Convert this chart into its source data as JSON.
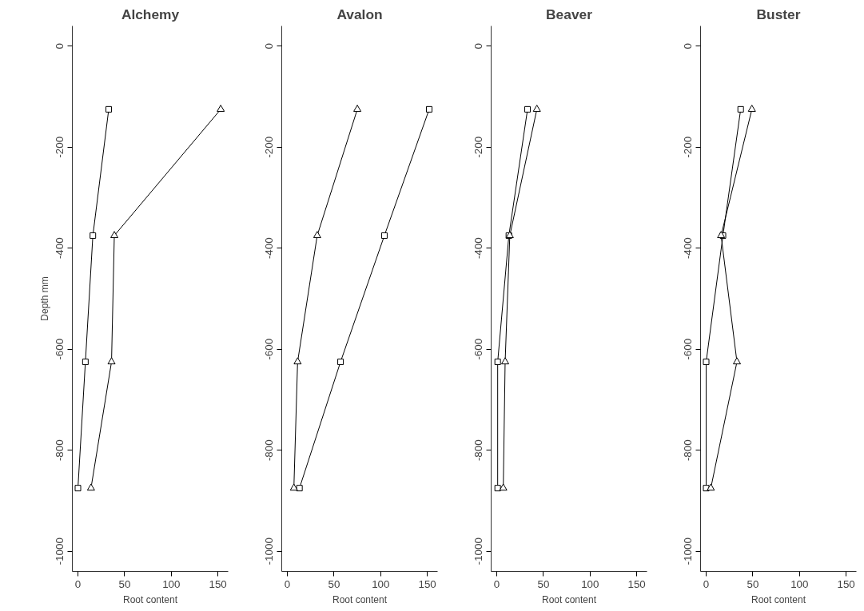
{
  "chart_data": [
    {
      "type": "line",
      "title": "Alchemy",
      "xlabel": "Root content",
      "ylabel": "Depth mm",
      "xlim": [
        -6,
        161
      ],
      "ylim": [
        -1040,
        40
      ],
      "xticks": [
        0,
        50,
        100,
        150
      ],
      "yticks": [
        0,
        -200,
        -400,
        -600,
        -800,
        -1000
      ],
      "series": [
        {
          "color": "#000000",
          "marker": "square",
          "x": [
            33,
            16,
            8,
            0
          ],
          "values": [
            -125,
            -375,
            -625,
            -875
          ]
        },
        {
          "color": "#000000",
          "marker": "triangle",
          "x": [
            153,
            39,
            36,
            14
          ],
          "values": [
            -125,
            -375,
            -625,
            -875
          ]
        }
      ]
    },
    {
      "type": "line",
      "title": "Avalon",
      "xlabel": "Root content",
      "xlim": [
        -6,
        161
      ],
      "ylim": [
        -1040,
        40
      ],
      "xticks": [
        0,
        50,
        100,
        150
      ],
      "yticks": [
        0,
        -200,
        -400,
        -600,
        -800,
        -1000
      ],
      "series": [
        {
          "color": "#000000",
          "marker": "square",
          "x": [
            152,
            104,
            57,
            13
          ],
          "values": [
            -125,
            -375,
            -625,
            -875
          ]
        },
        {
          "color": "#000000",
          "marker": "triangle",
          "x": [
            75,
            32,
            11,
            7
          ],
          "values": [
            -125,
            -375,
            -625,
            -875
          ]
        }
      ]
    },
    {
      "type": "line",
      "title": "Beaver",
      "xlabel": "Root content",
      "xlim": [
        -6,
        161
      ],
      "ylim": [
        -1040,
        40
      ],
      "xticks": [
        0,
        50,
        100,
        150
      ],
      "yticks": [
        0,
        -200,
        -400,
        -600,
        -800,
        -1000
      ],
      "series": [
        {
          "color": "#000000",
          "marker": "square",
          "x": [
            33,
            13,
            1,
            1
          ],
          "values": [
            -125,
            -375,
            -625,
            -875
          ]
        },
        {
          "color": "#000000",
          "marker": "triangle",
          "x": [
            43,
            14,
            9,
            7
          ],
          "values": [
            -125,
            -375,
            -625,
            -875
          ]
        }
      ]
    },
    {
      "type": "line",
      "title": "Buster",
      "xlabel": "Root content",
      "xlim": [
        -6,
        161
      ],
      "ylim": [
        -1040,
        40
      ],
      "xticks": [
        0,
        50,
        100,
        150
      ],
      "yticks": [
        0,
        -200,
        -400,
        -600,
        -800,
        -1000
      ],
      "series": [
        {
          "color": "#000000",
          "marker": "square",
          "x": [
            37,
            18,
            0,
            0
          ],
          "values": [
            -125,
            -375,
            -625,
            -875
          ]
        },
        {
          "color": "#000000",
          "marker": "triangle",
          "x": [
            49,
            16,
            33,
            5
          ],
          "values": [
            -125,
            -375,
            -625,
            -875
          ]
        }
      ]
    }
  ]
}
